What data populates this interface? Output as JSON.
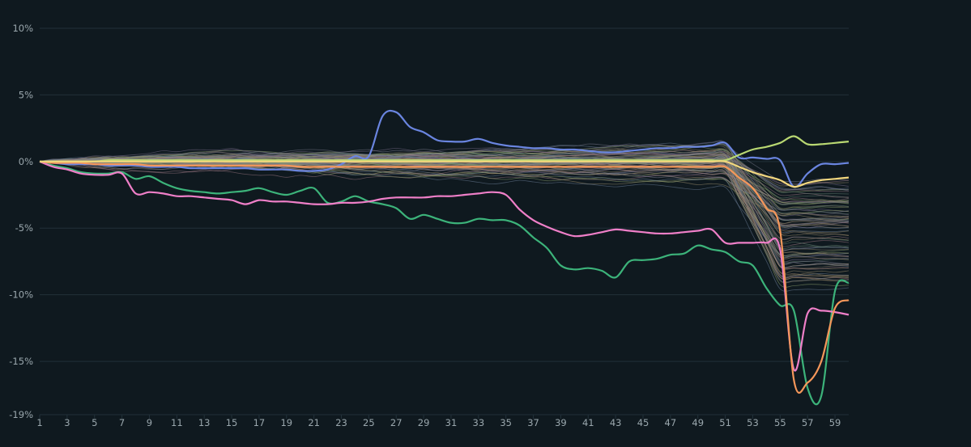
{
  "chart_data": {
    "type": "line",
    "title": "",
    "xlabel": "",
    "ylabel": "",
    "x": [
      1,
      2,
      3,
      4,
      5,
      6,
      7,
      8,
      9,
      10,
      11,
      12,
      13,
      14,
      15,
      16,
      17,
      18,
      19,
      20,
      21,
      22,
      23,
      24,
      25,
      26,
      27,
      28,
      29,
      30,
      31,
      32,
      33,
      34,
      35,
      36,
      37,
      38,
      39,
      40,
      41,
      42,
      43,
      44,
      45,
      46,
      47,
      48,
      49,
      50,
      51,
      52,
      53,
      54,
      55,
      56,
      57,
      58,
      59,
      60
    ],
    "x_tick_labels": [
      "1",
      "3",
      "5",
      "7",
      "9",
      "11",
      "13",
      "15",
      "17",
      "19",
      "21",
      "23",
      "25",
      "27",
      "29",
      "31",
      "33",
      "35",
      "37",
      "39",
      "41",
      "43",
      "45",
      "47",
      "49",
      "51",
      "53",
      "55",
      "57",
      "59"
    ],
    "y_ticks": [
      10,
      5,
      0,
      -5,
      -10,
      -15,
      -19
    ],
    "y_tick_labels": [
      "10%",
      "5%",
      "0%",
      "-5%",
      "-10%",
      "-15%",
      "-19%"
    ],
    "ylim": [
      -19,
      10
    ],
    "xlim": [
      1,
      60
    ],
    "grid": true,
    "background_series_count": 90,
    "highlighted_series": [
      {
        "color": "#3cb37a",
        "values": [
          0,
          -0.3,
          -0.5,
          -0.8,
          -0.9,
          -0.9,
          -0.8,
          -1.3,
          -1.1,
          -1.6,
          -2.0,
          -2.2,
          -2.3,
          -2.4,
          -2.3,
          -2.2,
          -2.0,
          -2.3,
          -2.5,
          -2.2,
          -2.0,
          -3.1,
          -3.0,
          -2.6,
          -3.0,
          -3.2,
          -3.5,
          -4.3,
          -4.0,
          -4.3,
          -4.6,
          -4.6,
          -4.3,
          -4.4,
          -4.4,
          -4.8,
          -5.7,
          -6.5,
          -7.8,
          -8.1,
          -8.0,
          -8.2,
          -8.7,
          -7.5,
          -7.4,
          -7.3,
          -7.0,
          -6.9,
          -6.3,
          -6.6,
          -6.8,
          -7.5,
          -7.8,
          -9.5,
          -10.8,
          -11.2,
          -17.0,
          -17.6,
          -9.7,
          -9.1
        ]
      },
      {
        "color": "#ef7fc8",
        "values": [
          0,
          -0.4,
          -0.6,
          -0.9,
          -1.0,
          -1.0,
          -0.9,
          -2.4,
          -2.3,
          -2.4,
          -2.6,
          -2.6,
          -2.7,
          -2.8,
          -2.9,
          -3.2,
          -2.9,
          -3.0,
          -3.0,
          -3.1,
          -3.2,
          -3.2,
          -3.1,
          -3.1,
          -3.0,
          -2.8,
          -2.7,
          -2.7,
          -2.7,
          -2.6,
          -2.6,
          -2.5,
          -2.4,
          -2.3,
          -2.5,
          -3.6,
          -4.4,
          -4.9,
          -5.3,
          -5.6,
          -5.5,
          -5.3,
          -5.1,
          -5.2,
          -5.3,
          -5.4,
          -5.4,
          -5.3,
          -5.2,
          -5.1,
          -6.1,
          -6.1,
          -6.1,
          -6.1,
          -6.6,
          -15.6,
          -11.4,
          -11.2,
          -11.3,
          -11.5
        ]
      },
      {
        "color": "#6a85e0",
        "values": [
          0,
          -0.1,
          -0.2,
          -0.2,
          -0.2,
          -0.3,
          -0.3,
          -0.3,
          -0.4,
          -0.4,
          -0.4,
          -0.5,
          -0.5,
          -0.5,
          -0.5,
          -0.5,
          -0.6,
          -0.6,
          -0.6,
          -0.7,
          -0.7,
          -0.6,
          -0.2,
          0.4,
          0.4,
          3.4,
          3.7,
          2.6,
          2.2,
          1.6,
          1.5,
          1.5,
          1.7,
          1.4,
          1.2,
          1.1,
          1.0,
          1.0,
          0.9,
          0.9,
          0.8,
          0.7,
          0.7,
          0.8,
          0.9,
          1.0,
          1.0,
          1.1,
          1.1,
          1.2,
          1.4,
          0.3,
          0.3,
          0.2,
          0.1,
          -1.9,
          -0.9,
          -0.2,
          -0.2,
          -0.1
        ]
      },
      {
        "color": "#f5975a",
        "values": [
          0,
          -0.1,
          -0.1,
          -0.1,
          -0.2,
          -0.2,
          -0.2,
          -0.2,
          -0.3,
          -0.3,
          -0.3,
          -0.3,
          -0.3,
          -0.3,
          -0.3,
          -0.3,
          -0.3,
          -0.3,
          -0.3,
          -0.4,
          -0.4,
          -0.4,
          -0.4,
          -0.4,
          -0.4,
          -0.4,
          -0.4,
          -0.4,
          -0.4,
          -0.4,
          -0.4,
          -0.4,
          -0.4,
          -0.4,
          -0.4,
          -0.4,
          -0.4,
          -0.4,
          -0.4,
          -0.4,
          -0.4,
          -0.4,
          -0.4,
          -0.4,
          -0.4,
          -0.4,
          -0.4,
          -0.4,
          -0.4,
          -0.4,
          -0.4,
          -1.2,
          -2.0,
          -3.5,
          -5.2,
          -16.4,
          -16.6,
          -15.0,
          -11.0,
          -10.4
        ]
      },
      {
        "color": "#b9d872",
        "values": [
          0,
          0,
          0,
          0,
          0,
          0.1,
          0.1,
          0.1,
          0.1,
          0.1,
          0.1,
          0.1,
          0.1,
          0.1,
          0.1,
          0.1,
          0.1,
          0.1,
          0.1,
          0.1,
          0.1,
          0.1,
          0.1,
          0.1,
          0.1,
          0.1,
          0.1,
          0.1,
          0.1,
          0.1,
          0.1,
          0.1,
          0.1,
          0.1,
          0.1,
          0.1,
          0.1,
          0.1,
          0.1,
          0.1,
          0.1,
          0.1,
          0.1,
          0.1,
          0.1,
          0.1,
          0.1,
          0.1,
          0.1,
          0.1,
          0.1,
          0.5,
          0.9,
          1.1,
          1.4,
          1.9,
          1.3,
          1.3,
          1.4,
          1.5
        ]
      },
      {
        "color": "#f2d77e",
        "values": [
          0,
          0,
          0,
          0,
          0,
          0,
          0,
          0,
          0,
          0,
          0,
          0,
          0,
          0,
          0,
          0,
          0,
          0,
          0,
          0,
          0,
          0,
          0,
          0,
          0,
          0,
          0,
          0,
          0,
          0,
          0,
          0,
          0,
          0,
          0,
          0,
          0,
          0,
          0,
          0,
          0,
          0,
          0,
          0,
          0,
          0,
          0,
          0,
          0,
          0,
          0,
          -0.4,
          -0.8,
          -1.1,
          -1.4,
          -1.9,
          -1.6,
          -1.4,
          -1.3,
          -1.2
        ]
      }
    ]
  }
}
